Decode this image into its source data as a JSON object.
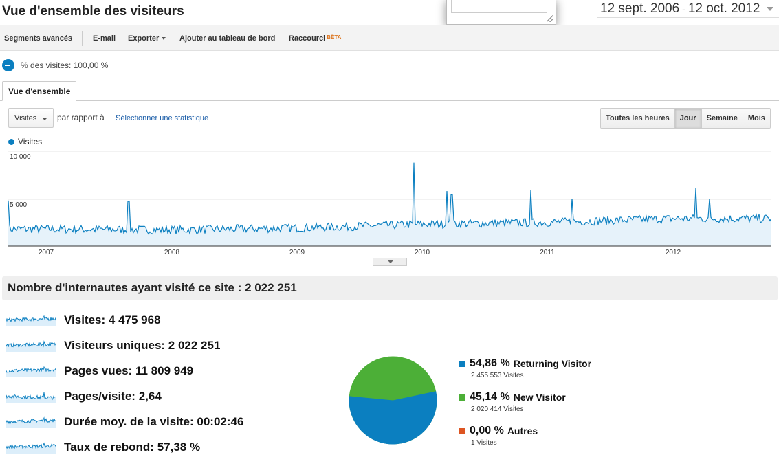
{
  "header": {
    "title": "Vue d'ensemble des visiteurs",
    "date_start": "12 sept. 2006",
    "date_sep": "-",
    "date_end": "12 oct. 2012"
  },
  "toolbar": {
    "items": [
      "Segments avancés",
      "E-mail",
      "Exporter",
      "Ajouter au tableau de bord",
      "Raccourci"
    ],
    "beta_badge": "BÊTA"
  },
  "segment": {
    "label": "% des visites: 100,00 %"
  },
  "tabs": [
    {
      "label": "Vue d'ensemble",
      "active": true
    }
  ],
  "controls": {
    "metric_select": "Visites",
    "compare_label": "par rapport à",
    "select_stat_link": "Sélectionner une statistique",
    "period_buttons": [
      {
        "label": "Toutes les heures",
        "active": false
      },
      {
        "label": "Jour",
        "active": true
      },
      {
        "label": "Semaine",
        "active": false
      },
      {
        "label": "Mois",
        "active": false
      }
    ]
  },
  "colors": {
    "accent": "#0b7fc0",
    "new_visitor": "#4caf37",
    "other": "#dd5522",
    "fill": "#e6f2fa"
  },
  "chart_data": {
    "type": "area",
    "title": "",
    "series": [
      {
        "name": "Visites",
        "granularity": "day"
      }
    ],
    "legend": [
      "Visites"
    ],
    "y_ticks": [
      "10 000",
      "5 000"
    ],
    "ylim": [
      0,
      10000
    ],
    "x_ticks": [
      "2007",
      "2008",
      "2009",
      "2010",
      "2011",
      "2012"
    ],
    "x_range": [
      "12 sept. 2006",
      "12 oct. 2012"
    ],
    "approx_trend": {
      "2007": 1800,
      "2008": 1700,
      "2009": 1900,
      "2010": 2300,
      "2011": 2500,
      "2012": 2900
    },
    "notable_peaks": [
      {
        "date": "late 2007",
        "value": 4700
      },
      {
        "date": "end 2009",
        "value": 8800
      },
      {
        "date": "mid 2010",
        "value": 5800
      },
      {
        "date": "late 2010",
        "value": 5900
      },
      {
        "date": "early 2012",
        "value": 6100
      }
    ],
    "grid": true
  },
  "summary": {
    "label": "Nombre d'internautes ayant visité ce site : 2 022 251"
  },
  "metrics": [
    {
      "label": "Visites:",
      "value": "4 475 968"
    },
    {
      "label": "Visiteurs uniques:",
      "value": "2 022 251"
    },
    {
      "label": "Pages vues:",
      "value": "11 809 949"
    },
    {
      "label": "Pages/visite:",
      "value": "2,64"
    },
    {
      "label": "Durée moy. de la visite:",
      "value": "00:02:46"
    },
    {
      "label": "Taux de rebond:",
      "value": "57,38 %"
    }
  ],
  "pie": {
    "slices": [
      {
        "pct": "54,86 %",
        "label": "Returning Visitor",
        "visits": "2 455 553 Visites",
        "value": 54.86,
        "color": "#0b7fc0"
      },
      {
        "pct": "45,14 %",
        "label": "New Visitor",
        "visits": "2 020 414 Visites",
        "value": 45.14,
        "color": "#4caf37"
      },
      {
        "pct": "0,00 %",
        "label": "Autres",
        "visits": "1 Visites",
        "value": 0,
        "color": "#dd5522"
      }
    ]
  }
}
